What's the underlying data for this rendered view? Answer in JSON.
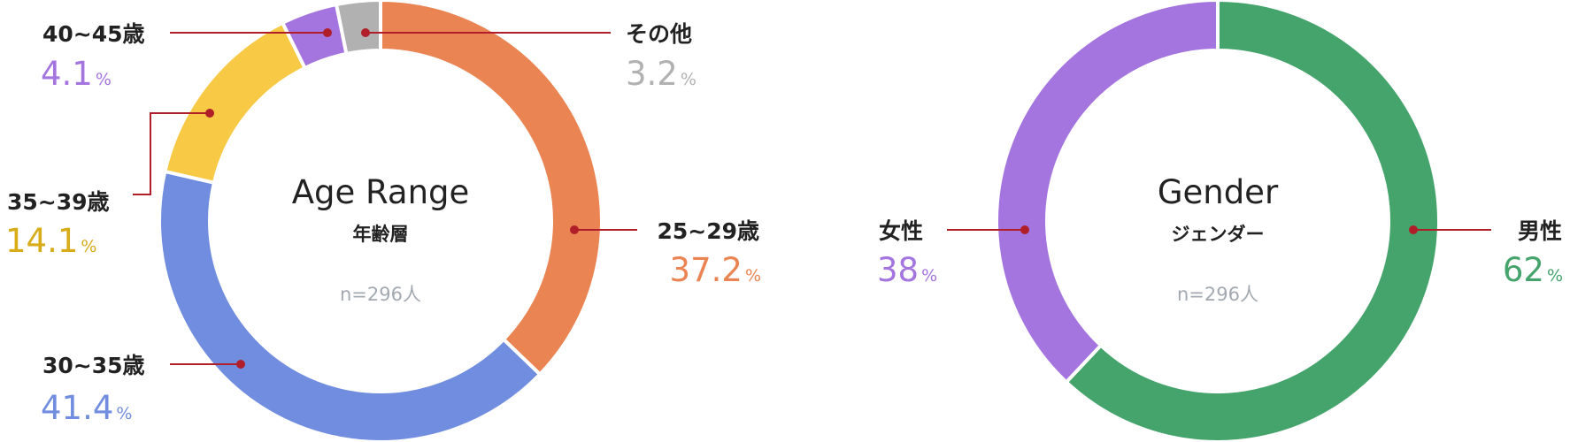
{
  "colors": {
    "leader": "#b01e2a",
    "separator": "#ffffff"
  },
  "chart_data": [
    {
      "type": "pie",
      "title": "Age Range",
      "subtitle": "年齢層",
      "note": "n=296人",
      "unit": "%",
      "slices": [
        {
          "label": "25~29歳",
          "value": 37.2,
          "display": "37.2",
          "color": "#ea8452"
        },
        {
          "label": "30~35歳",
          "value": 41.4,
          "display": "41.4",
          "color": "#708ddf"
        },
        {
          "label": "35~39歳",
          "value": 14.1,
          "display": "14.1",
          "color": "#f7c945",
          "value_color": "#d8ab18"
        },
        {
          "label": "40~45歳",
          "value": 4.1,
          "display": "4.1",
          "color": "#a474df"
        },
        {
          "label": "その他",
          "value": 3.2,
          "display": "3.2",
          "color": "#b1b1b1"
        }
      ]
    },
    {
      "type": "pie",
      "title": "Gender",
      "subtitle": "ジェンダー",
      "note": "n=296人",
      "unit": "%",
      "slices": [
        {
          "label": "男性",
          "value": 62,
          "display": "62",
          "color": "#45a36c"
        },
        {
          "label": "女性",
          "value": 38,
          "display": "38",
          "color": "#a474df"
        }
      ]
    }
  ]
}
